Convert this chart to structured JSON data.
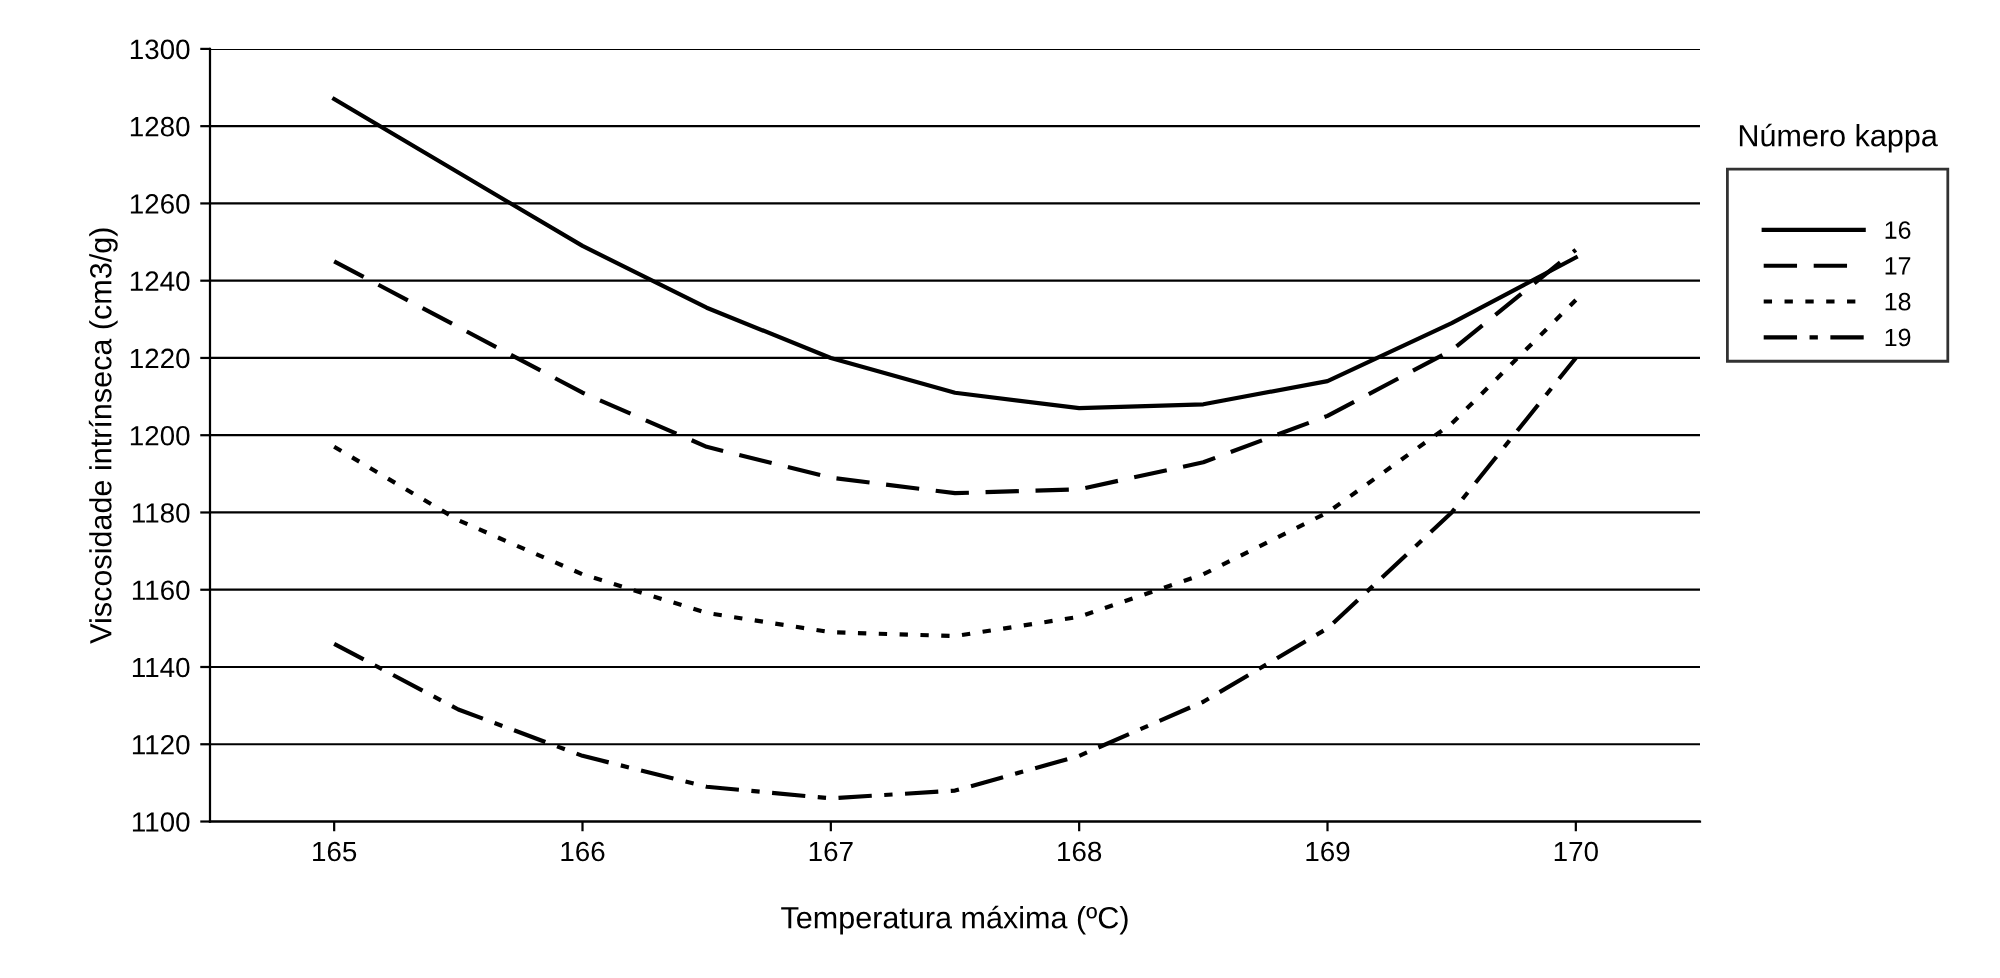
{
  "chart_data": {
    "type": "line",
    "xlabel": "Temperatura máxima (ºC)",
    "ylabel": "Viscosidade intrínseca (cm3/g)",
    "legend_title": "Número kappa",
    "legend": "right",
    "x": [
      165,
      165.5,
      166,
      166.5,
      167,
      167.5,
      168,
      168.5,
      169,
      169.5,
      170
    ],
    "xlim": [
      164.5,
      170.5
    ],
    "xticks": [
      165,
      166,
      167,
      168,
      169,
      170
    ],
    "ylim": [
      1100,
      1300
    ],
    "yticks": [
      1100,
      1120,
      1140,
      1160,
      1180,
      1200,
      1220,
      1240,
      1260,
      1280,
      1300
    ],
    "grid": "y",
    "series": [
      {
        "name": "16",
        "color": "#000000",
        "line_style": "solid",
        "values": [
          1287,
          1268,
          1249,
          1233,
          1220,
          1211,
          1207,
          1208,
          1214,
          1229,
          1246
        ]
      },
      {
        "name": "17",
        "color": "#000000",
        "line_style": "dashed",
        "values": [
          1245,
          1228,
          1211,
          1197,
          1189,
          1185,
          1186,
          1193,
          1205,
          1222,
          1248
        ]
      },
      {
        "name": "18",
        "color": "#000000",
        "line_style": "dotted",
        "values": [
          1197,
          1178,
          1164,
          1154,
          1149,
          1148,
          1153,
          1164,
          1180,
          1203,
          1235
        ]
      },
      {
        "name": "19",
        "color": "#000000",
        "line_style": "dashdot",
        "values": [
          1146,
          1129,
          1117,
          1109,
          1106,
          1108,
          1117,
          1131,
          1150,
          1180,
          1220
        ]
      }
    ]
  }
}
